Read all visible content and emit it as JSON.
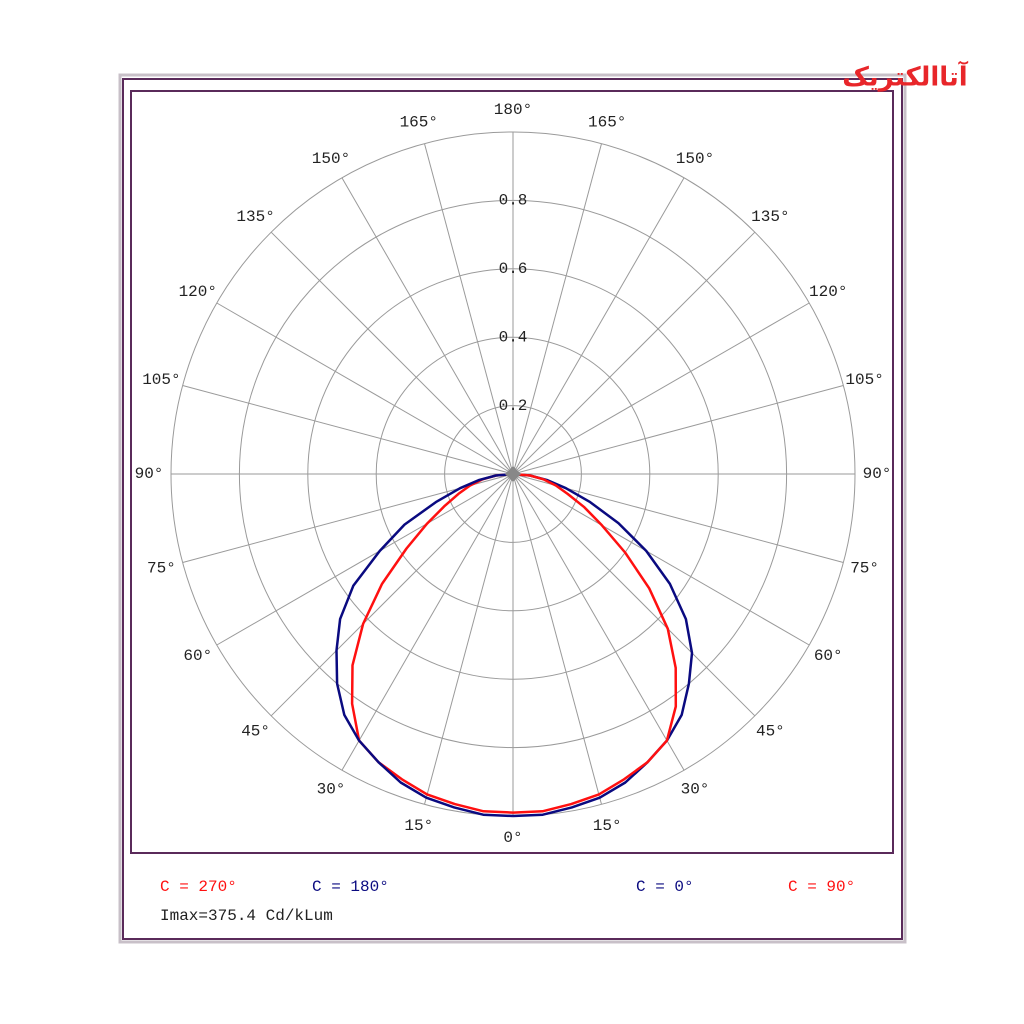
{
  "logo": "آتاالکتریک",
  "chart_data": {
    "type": "polar",
    "angles": [
      0,
      5,
      10,
      15,
      20,
      25,
      30,
      35,
      40,
      45,
      50,
      55,
      60,
      65,
      70,
      75,
      80,
      85,
      90
    ],
    "rlim": [
      0,
      1
    ],
    "rticks": [
      0.2,
      0.4,
      0.6,
      0.8
    ],
    "angle_ticks": [
      {
        "value": 0,
        "label": "0°"
      },
      {
        "value": 15,
        "label": "15°"
      },
      {
        "value": 30,
        "label": "30°"
      },
      {
        "value": 45,
        "label": "45°"
      },
      {
        "value": 60,
        "label": "60°"
      },
      {
        "value": 75,
        "label": "75°"
      },
      {
        "value": 90,
        "label": "90°"
      },
      {
        "value": 105,
        "label": "105°"
      },
      {
        "value": 120,
        "label": "120°"
      },
      {
        "value": 135,
        "label": "135°"
      },
      {
        "value": 150,
        "label": "150°"
      },
      {
        "value": 165,
        "label": "165°"
      },
      {
        "value": 180,
        "label": "180°"
      }
    ],
    "series": [
      {
        "name": "C = 270°",
        "color": "#ff1010",
        "side": "left",
        "values": [
          0.99,
          0.99,
          0.98,
          0.97,
          0.95,
          0.93,
          0.9,
          0.82,
          0.73,
          0.62,
          0.5,
          0.38,
          0.29,
          0.22,
          0.17,
          0.13,
          0.09,
          0.05,
          0.0
        ]
      },
      {
        "name": "C = 180°",
        "color": "#0a0a80",
        "side": "left",
        "values": [
          1.0,
          1.0,
          0.99,
          0.98,
          0.96,
          0.93,
          0.9,
          0.86,
          0.8,
          0.73,
          0.66,
          0.57,
          0.45,
          0.35,
          0.24,
          0.16,
          0.1,
          0.05,
          0.0
        ]
      },
      {
        "name": "C = 0°",
        "color": "#0a0a80",
        "side": "right",
        "values": [
          1.0,
          1.0,
          0.99,
          0.98,
          0.96,
          0.93,
          0.9,
          0.86,
          0.8,
          0.74,
          0.66,
          0.56,
          0.45,
          0.34,
          0.24,
          0.16,
          0.1,
          0.05,
          0.0
        ]
      },
      {
        "name": "C = 90°",
        "color": "#ff1010",
        "side": "right",
        "values": [
          0.99,
          0.99,
          0.98,
          0.97,
          0.95,
          0.93,
          0.9,
          0.83,
          0.74,
          0.64,
          0.52,
          0.4,
          0.3,
          0.23,
          0.17,
          0.13,
          0.09,
          0.05,
          0.0
        ]
      }
    ],
    "annotation": "Imax=375.4 Cd/kLum"
  }
}
